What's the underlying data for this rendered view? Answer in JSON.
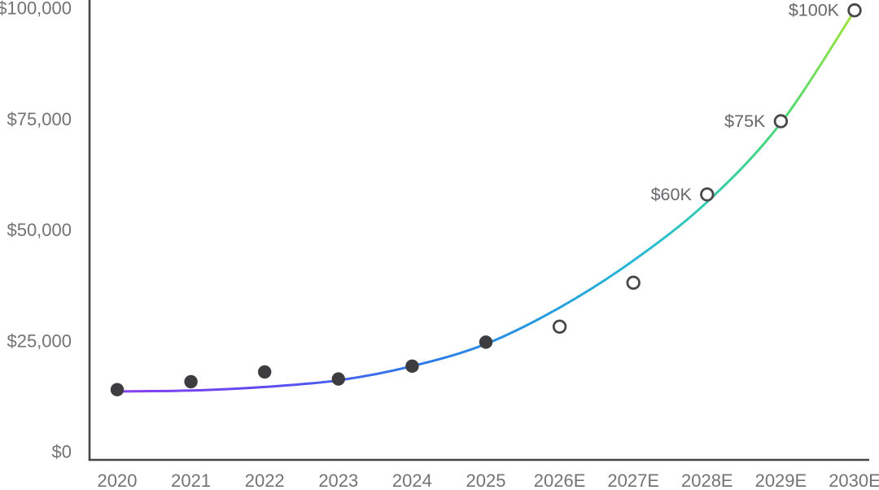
{
  "chart_data": {
    "type": "scatter",
    "title": "",
    "xlabel": "",
    "ylabel": "",
    "legend": "none",
    "grid": false,
    "ylim": [
      0,
      100000
    ],
    "categories": [
      "2020",
      "2021",
      "2022",
      "2023",
      "2024",
      "2025",
      "2026E",
      "2027E",
      "2028E",
      "2029E",
      "2030E"
    ],
    "points": [
      {
        "label": "2020",
        "value": 14000,
        "estimate": false
      },
      {
        "label": "2021",
        "value": 15800,
        "estimate": false
      },
      {
        "label": "2022",
        "value": 18000,
        "estimate": false
      },
      {
        "label": "2023",
        "value": 16400,
        "estimate": false
      },
      {
        "label": "2024",
        "value": 19300,
        "estimate": false
      },
      {
        "label": "2025",
        "value": 24700,
        "estimate": false
      },
      {
        "label": "2026E",
        "value": 28200,
        "estimate": true
      },
      {
        "label": "2027E",
        "value": 38100,
        "estimate": true
      },
      {
        "label": "2028E",
        "value": 58000,
        "estimate": true,
        "annotation": "$60K"
      },
      {
        "label": "2029E",
        "value": 74500,
        "estimate": true,
        "annotation": "$75K"
      },
      {
        "label": "2030E",
        "value": 99500,
        "estimate": true,
        "annotation": "$100K"
      }
    ],
    "trend": {
      "name": "trend-curve",
      "values": [
        13600,
        13800,
        14600,
        16100,
        19300,
        24300,
        32500,
        43100,
        56300,
        74100,
        99400
      ]
    },
    "y_ticks": [
      {
        "value": 0,
        "label": "$0"
      },
      {
        "value": 25000,
        "label": "$25,000"
      },
      {
        "value": 50000,
        "label": "$50,000"
      },
      {
        "value": 75000,
        "label": "$75,000"
      },
      {
        "value": 100000,
        "label": "$100,000"
      }
    ],
    "colors": {
      "background": "#ffffff",
      "axis": "#454547",
      "tick_text": "#737377",
      "annotation_text": "#68686c",
      "dot_fill": "#3d3d3f",
      "open_circle_stroke": "#48484a",
      "open_circle_fill": "#ffffff"
    },
    "gradient_stops": [
      {
        "offset": 0.0,
        "color": "#8a3ff0"
      },
      {
        "offset": 0.2,
        "color": "#5f4af1"
      },
      {
        "offset": 0.4,
        "color": "#2e78e9"
      },
      {
        "offset": 0.57,
        "color": "#2699e2"
      },
      {
        "offset": 0.72,
        "color": "#2bbdd4"
      },
      {
        "offset": 0.83,
        "color": "#3ad0a0"
      },
      {
        "offset": 0.91,
        "color": "#52d973"
      },
      {
        "offset": 1.0,
        "color": "#a3e43a"
      }
    ]
  }
}
